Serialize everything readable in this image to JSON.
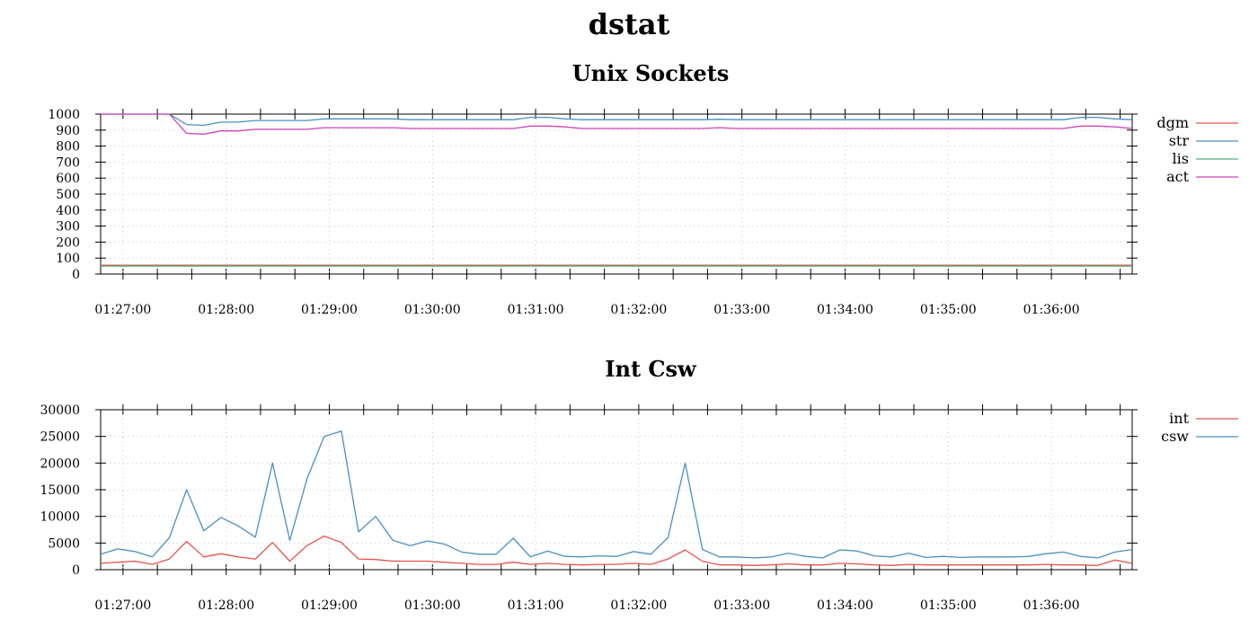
{
  "page_title": "dstat",
  "chart_data": [
    {
      "type": "line",
      "title": "Unix Sockets",
      "xlabel": "",
      "ylabel": "",
      "x_start": "01:26:47",
      "x_step_seconds": 10,
      "xlim": [
        "01:26:47",
        "01:36:47"
      ],
      "ylim": [
        0,
        1000
      ],
      "y_ticks": [
        0,
        100,
        200,
        300,
        400,
        500,
        600,
        700,
        800,
        900,
        1000
      ],
      "x_tick_labels": [
        "01:27:00",
        "01:28:00",
        "01:29:00",
        "01:30:00",
        "01:31:00",
        "01:32:00",
        "01:33:00",
        "01:34:00",
        "01:35:00",
        "01:36:00"
      ],
      "grid": true,
      "legend_position": "right",
      "series": [
        {
          "name": "dgm",
          "color": "#e5534b",
          "values": [
            55,
            55,
            55,
            55,
            55,
            55,
            55,
            55,
            55,
            55,
            55,
            55,
            55,
            55,
            55,
            55,
            55,
            55,
            55,
            55,
            55,
            55,
            55,
            55,
            55,
            55,
            55,
            55,
            55,
            55,
            55,
            55,
            55,
            55,
            55,
            55,
            55,
            55,
            55,
            55,
            55,
            55,
            55,
            55,
            55,
            55,
            55,
            55,
            55,
            55,
            55,
            55,
            55,
            55,
            55,
            55,
            55,
            55,
            55,
            55,
            55
          ]
        },
        {
          "name": "str",
          "color": "#4a90c0",
          "values": [
            1000,
            1000,
            1000,
            1000,
            1000,
            935,
            930,
            950,
            950,
            960,
            960,
            960,
            960,
            970,
            970,
            970,
            970,
            970,
            965,
            965,
            965,
            965,
            965,
            965,
            965,
            980,
            980,
            970,
            965,
            965,
            965,
            965,
            965,
            965,
            965,
            965,
            968,
            965,
            965,
            965,
            965,
            965,
            965,
            965,
            965,
            965,
            965,
            965,
            965,
            965,
            965,
            965,
            965,
            965,
            965,
            965,
            965,
            980,
            980,
            970,
            965
          ]
        },
        {
          "name": "lis",
          "color": "#4caf7a",
          "values": [
            50,
            50,
            50,
            50,
            50,
            50,
            50,
            50,
            50,
            50,
            50,
            50,
            50,
            50,
            50,
            50,
            50,
            50,
            50,
            50,
            50,
            50,
            50,
            50,
            50,
            50,
            50,
            50,
            50,
            50,
            50,
            50,
            50,
            50,
            50,
            50,
            50,
            50,
            50,
            50,
            50,
            50,
            50,
            50,
            50,
            50,
            50,
            50,
            50,
            50,
            50,
            50,
            50,
            50,
            50,
            50,
            50,
            50,
            50,
            50,
            50
          ]
        },
        {
          "name": "act",
          "color": "#cc44bb",
          "values": [
            1000,
            1000,
            1000,
            1000,
            1000,
            880,
            875,
            895,
            895,
            905,
            905,
            905,
            905,
            915,
            915,
            915,
            915,
            915,
            910,
            910,
            910,
            910,
            910,
            910,
            910,
            925,
            925,
            920,
            910,
            910,
            910,
            910,
            910,
            910,
            910,
            910,
            915,
            910,
            910,
            910,
            910,
            910,
            910,
            910,
            910,
            910,
            910,
            910,
            910,
            910,
            910,
            910,
            910,
            910,
            910,
            910,
            910,
            925,
            925,
            920,
            910
          ]
        }
      ]
    },
    {
      "type": "line",
      "title": "Int Csw",
      "xlabel": "",
      "ylabel": "",
      "x_start": "01:26:47",
      "x_step_seconds": 10,
      "xlim": [
        "01:26:47",
        "01:36:47"
      ],
      "ylim": [
        0,
        30000
      ],
      "y_ticks": [
        0,
        5000,
        10000,
        15000,
        20000,
        25000,
        30000
      ],
      "x_tick_labels": [
        "01:27:00",
        "01:28:00",
        "01:29:00",
        "01:30:00",
        "01:31:00",
        "01:32:00",
        "01:33:00",
        "01:34:00",
        "01:35:00",
        "01:36:00"
      ],
      "grid": true,
      "legend_position": "right",
      "series": [
        {
          "name": "int",
          "color": "#e5534b",
          "values": [
            1200,
            1400,
            1600,
            1000,
            2000,
            5300,
            2400,
            3000,
            2400,
            2000,
            5100,
            1600,
            4500,
            6300,
            5100,
            2000,
            1900,
            1600,
            1600,
            1600,
            1400,
            1200,
            1000,
            1000,
            1400,
            1000,
            1200,
            1000,
            900,
            1000,
            1000,
            1200,
            1000,
            2000,
            3700,
            1600,
            900,
            900,
            800,
            900,
            1100,
            900,
            900,
            1200,
            1100,
            900,
            800,
            1000,
            900,
            900,
            900,
            900,
            900,
            900,
            900,
            1000,
            900,
            900,
            800,
            1800,
            1200
          ]
        },
        {
          "name": "csw",
          "color": "#4a90c0",
          "values": [
            2900,
            3900,
            3400,
            2400,
            6000,
            15000,
            7300,
            9800,
            8200,
            6100,
            20000,
            5500,
            17000,
            25000,
            26000,
            7100,
            10000,
            5500,
            4500,
            5400,
            4800,
            3300,
            2900,
            2900,
            5900,
            2400,
            3500,
            2500,
            2400,
            2600,
            2500,
            3400,
            2900,
            6000,
            20000,
            3800,
            2400,
            2400,
            2200,
            2400,
            3100,
            2500,
            2200,
            3700,
            3500,
            2600,
            2400,
            3100,
            2300,
            2500,
            2300,
            2400,
            2400,
            2400,
            2500,
            3000,
            3300,
            2500,
            2200,
            3300,
            3800
          ]
        }
      ]
    }
  ]
}
